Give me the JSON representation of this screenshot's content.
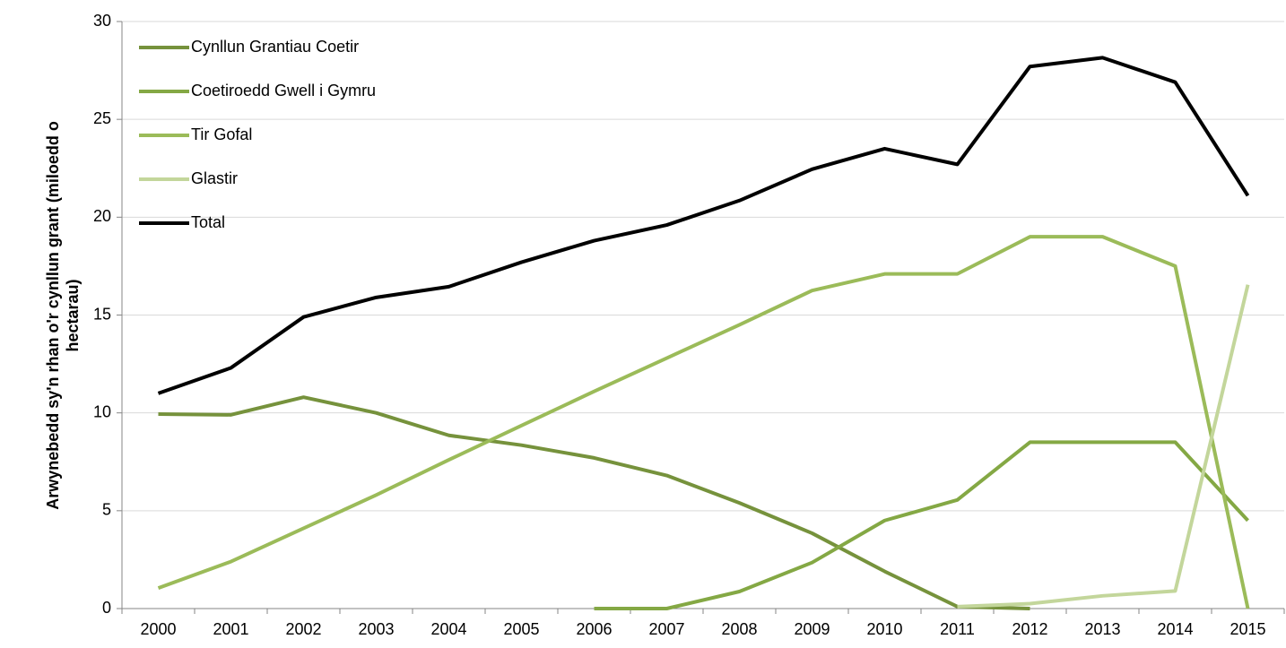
{
  "chart_data": {
    "type": "line",
    "y_label_lines": [
      "Arwynebedd sy'n rhan o'r cynllun grant (miloedd o",
      "hectarau)"
    ],
    "categories": [
      "2000",
      "2001",
      "2002",
      "2003",
      "2004",
      "2005",
      "2006",
      "2007",
      "2008",
      "2009",
      "2010",
      "2011",
      "2012",
      "2013",
      "2014",
      "2015"
    ],
    "series": [
      {
        "name": "Cynllun Grantiau Coetir",
        "color": "#76923c",
        "values": [
          9.94,
          9.9,
          10.8,
          10.0,
          8.85,
          8.35,
          7.7,
          6.8,
          5.4,
          3.85,
          1.9,
          0.1,
          0,
          null,
          null,
          null
        ]
      },
      {
        "name": "Coetiroedd Gwell i Gymru",
        "color": "#84a844",
        "values": [
          null,
          null,
          null,
          null,
          null,
          null,
          0,
          0,
          0.87,
          2.35,
          4.5,
          5.55,
          8.5,
          8.5,
          8.5,
          4.5
        ]
      },
      {
        "name": "Tir Gofal",
        "color": "#9bbb59",
        "values": [
          1.05,
          2.4,
          4.1,
          5.8,
          7.6,
          9.35,
          11.1,
          12.8,
          14.5,
          16.25,
          17.1,
          17.1,
          19.0,
          19.0,
          17.5,
          0
        ]
      },
      {
        "name": "Glastir",
        "color": "#c3d69b",
        "values": [
          null,
          null,
          null,
          null,
          null,
          null,
          null,
          null,
          null,
          null,
          null,
          0.1,
          0.25,
          0.65,
          0.9,
          16.55
        ]
      },
      {
        "name": "Total",
        "color": "#000000",
        "values": [
          11.0,
          12.3,
          14.9,
          15.9,
          16.45,
          17.7,
          18.8,
          19.6,
          20.85,
          22.45,
          23.5,
          22.7,
          27.7,
          28.15,
          26.9,
          21.1
        ]
      }
    ],
    "ylim": [
      0,
      30
    ],
    "yticks": [
      0,
      5,
      10,
      15,
      20,
      25,
      30
    ],
    "grid": true,
    "legend": "top-left"
  }
}
